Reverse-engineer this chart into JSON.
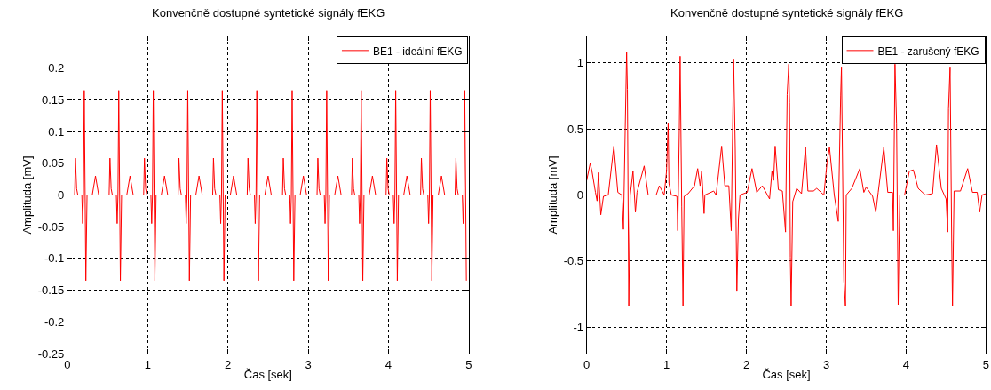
{
  "chart_data": [
    {
      "type": "line",
      "title": "Konvenčně dostupné syntetické signály fEKG",
      "xlabel": "Čas [sek]",
      "ylabel": "Amplituda [mV]",
      "xlim": [
        0,
        5
      ],
      "xticks": [
        0,
        1,
        2,
        3,
        4,
        5
      ],
      "ylim": [
        -0.25,
        0.25
      ],
      "yticks": [
        -0.25,
        -0.2,
        -0.15,
        -0.1,
        -0.05,
        0,
        0.05,
        0.1,
        0.15,
        0.2
      ],
      "grid": true,
      "legend": "top right",
      "line_style": "solid",
      "series": [
        {
          "name": "BE1 - ideální fEKG",
          "color": "#ff0000",
          "x": [
            0,
            0.09,
            0.1,
            0.115,
            0.13,
            0.18,
            0.19,
            0.2,
            0.21,
            0.23,
            0.245,
            0.31,
            0.35,
            0.39,
            0.52,
            0.53,
            0.545,
            0.56,
            0.61,
            0.62,
            0.63,
            0.64,
            0.66,
            0.675,
            0.74,
            0.78,
            0.82,
            0.95,
            0.96,
            0.975,
            0.99,
            1.04,
            1.05,
            1.06,
            1.07,
            1.09,
            1.105,
            1.17,
            1.21,
            1.25,
            1.38,
            1.39,
            1.405,
            1.42,
            1.47,
            1.48,
            1.49,
            1.5,
            1.52,
            1.535,
            1.6,
            1.64,
            1.68,
            1.81,
            1.82,
            1.835,
            1.85,
            1.9,
            1.91,
            1.92,
            1.93,
            1.95,
            1.965,
            2.03,
            2.07,
            2.11,
            2.24,
            2.25,
            2.265,
            2.28,
            2.33,
            2.34,
            2.35,
            2.36,
            2.38,
            2.395,
            2.46,
            2.5,
            2.54,
            2.68,
            2.69,
            2.705,
            2.72,
            2.77,
            2.78,
            2.79,
            2.8,
            2.82,
            2.835,
            2.9,
            2.94,
            2.98,
            3.11,
            3.12,
            3.135,
            3.15,
            3.2,
            3.21,
            3.22,
            3.23,
            3.25,
            3.265,
            3.33,
            3.37,
            3.41,
            3.54,
            3.55,
            3.565,
            3.58,
            3.63,
            3.64,
            3.65,
            3.66,
            3.68,
            3.695,
            3.76,
            3.8,
            3.84,
            3.97,
            3.98,
            3.995,
            4.01,
            4.06,
            4.07,
            4.08,
            4.09,
            4.11,
            4.125,
            4.19,
            4.23,
            4.27,
            4.4,
            4.41,
            4.425,
            4.44,
            4.49,
            4.5,
            4.51,
            4.52,
            4.54,
            4.555,
            4.62,
            4.66,
            4.7,
            4.83,
            4.84,
            4.855,
            4.87,
            4.92,
            4.93,
            4.94,
            4.95,
            4.97
          ],
          "values": [
            0,
            0,
            0.058,
            0.01,
            0,
            0,
            -0.045,
            0,
            0.165,
            -0.135,
            0,
            0,
            0.03,
            0,
            0,
            0.058,
            0.01,
            0,
            0,
            -0.045,
            0,
            0.165,
            -0.135,
            0,
            0,
            0.03,
            0,
            0,
            0.058,
            0.01,
            0,
            0,
            -0.045,
            0,
            0.165,
            -0.135,
            0,
            0,
            0.03,
            0,
            0,
            0.058,
            0.01,
            0,
            0,
            -0.045,
            0,
            0.165,
            -0.135,
            0,
            0,
            0.03,
            0,
            0,
            0.058,
            0.01,
            0,
            0,
            -0.045,
            0,
            0.165,
            -0.135,
            0,
            0,
            0.03,
            0,
            0,
            0.058,
            0.01,
            0,
            0,
            -0.045,
            0,
            0.165,
            -0.135,
            0,
            0,
            0.03,
            0,
            0,
            0.058,
            0.01,
            0,
            0,
            -0.045,
            0,
            0.165,
            -0.135,
            0,
            0,
            0.03,
            0,
            0,
            0.058,
            0.01,
            0,
            0,
            -0.045,
            0,
            0.165,
            -0.135,
            0,
            0,
            0.03,
            0,
            0,
            0.058,
            0.01,
            0,
            0,
            -0.045,
            0,
            0.165,
            -0.135,
            0,
            0,
            0.03,
            0,
            0,
            0.058,
            0.01,
            0,
            0,
            -0.045,
            0,
            0.165,
            -0.135,
            0,
            0,
            0.03,
            0,
            0,
            0.058,
            0.01,
            0,
            0,
            -0.045,
            0,
            0.165,
            -0.135,
            0,
            0,
            0.03,
            0,
            0,
            0.058,
            0.01,
            0,
            0,
            -0.045,
            0,
            0.165,
            -0.135
          ]
        }
      ]
    },
    {
      "type": "line",
      "title": "Konvenčně dostupné syntetické signály fEKG",
      "xlabel": "Čas [sek]",
      "ylabel": "Amplituda [mV]",
      "xlim": [
        0,
        5
      ],
      "xticks": [
        0,
        1,
        2,
        3,
        4,
        5
      ],
      "ylim": [
        -1.2,
        1.2
      ],
      "yticks": [
        -1,
        -0.5,
        0,
        0.5,
        1
      ],
      "grid": true,
      "legend": "top right",
      "line_style": "solid",
      "series": [
        {
          "name": "BE1 - zarušený fEKG",
          "color": "#ff0000",
          "x": [
            0,
            0.044,
            0.066,
            0.11,
            0.13,
            0.147,
            0.177,
            0.21,
            0.27,
            0.34,
            0.39,
            0.44,
            0.46,
            0.48,
            0.5,
            0.51,
            0.527,
            0.545,
            0.58,
            0.61,
            0.63,
            0.72,
            0.77,
            0.87,
            0.91,
            0.97,
            1.0,
            1.02,
            1.03,
            1.06,
            1.13,
            1.14,
            1.16,
            1.17,
            1.19,
            1.206,
            1.22,
            1.27,
            1.35,
            1.39,
            1.42,
            1.44,
            1.47,
            1.48,
            1.59,
            1.62,
            1.69,
            1.73,
            1.78,
            1.81,
            1.83,
            1.84,
            1.86,
            1.88,
            1.9,
            1.92,
            2.01,
            2.07,
            2.13,
            2.2,
            2.29,
            2.32,
            2.34,
            2.36,
            2.4,
            2.45,
            2.49,
            2.51,
            2.53,
            2.54,
            2.55,
            2.56,
            2.58,
            2.63,
            2.69,
            2.74,
            2.77,
            2.84,
            2.88,
            2.97,
            3.01,
            3.04,
            3.1,
            3.15,
            3.18,
            3.19,
            3.22,
            3.24,
            3.25,
            3.32,
            3.42,
            3.47,
            3.5,
            3.58,
            3.62,
            3.65,
            3.72,
            3.77,
            3.83,
            3.84,
            3.86,
            3.88,
            3.9,
            3.92,
            3.98,
            4.04,
            4.09,
            4.15,
            4.24,
            4.33,
            4.38,
            4.44,
            4.5,
            4.52,
            4.53,
            4.55,
            4.57,
            4.58,
            4.6,
            4.68,
            4.77,
            4.83,
            4.89,
            4.92,
            4.95,
            5.0
          ],
          "values": [
            0.11,
            0.24,
            0.18,
            0.02,
            -0.045,
            0.17,
            -0.15,
            -0.01,
            0,
            0.37,
            0.02,
            0,
            -0.26,
            0.42,
            1.08,
            0.8,
            -0.84,
            0,
            0.18,
            -0.13,
            0.02,
            0.22,
            0,
            0,
            0.07,
            0,
            0.18,
            0.54,
            0.09,
            0,
            -0.01,
            -0.27,
            0.5,
            1.05,
            -0.09,
            -0.84,
            -0.01,
            0.01,
            0.07,
            0.2,
            0.07,
            0.18,
            -0.14,
            0,
            0.03,
            0,
            0.37,
            0.07,
            0.07,
            -0.27,
            0.63,
            1.03,
            0.36,
            -0.73,
            -0.18,
            0,
            0.02,
            0.2,
            0.02,
            0.07,
            -0.03,
            0.18,
            0.11,
            0.37,
            0.04,
            0.03,
            -0.28,
            0.76,
            0.99,
            0.7,
            -0.47,
            -0.84,
            -0.05,
            0.05,
            0.01,
            0.36,
            0.03,
            0.03,
            0.05,
            0,
            0.25,
            0.36,
            0,
            -0.2,
            0.75,
            0.97,
            -0.65,
            -0.84,
            0,
            0.05,
            0.2,
            0.02,
            0.06,
            -0.01,
            -0.13,
            0.02,
            0.36,
            0.02,
            0.02,
            -0.27,
            0.99,
            0.54,
            -0.83,
            0,
            0,
            0.18,
            0.19,
            0.05,
            0,
            0.01,
            0.38,
            0.05,
            -0.03,
            -0.28,
            0.65,
            0.97,
            -0.34,
            -0.84,
            0.03,
            0.03,
            0.2,
            0.02,
            0.02,
            -0.13,
            0,
            0.01
          ]
        }
      ]
    }
  ]
}
